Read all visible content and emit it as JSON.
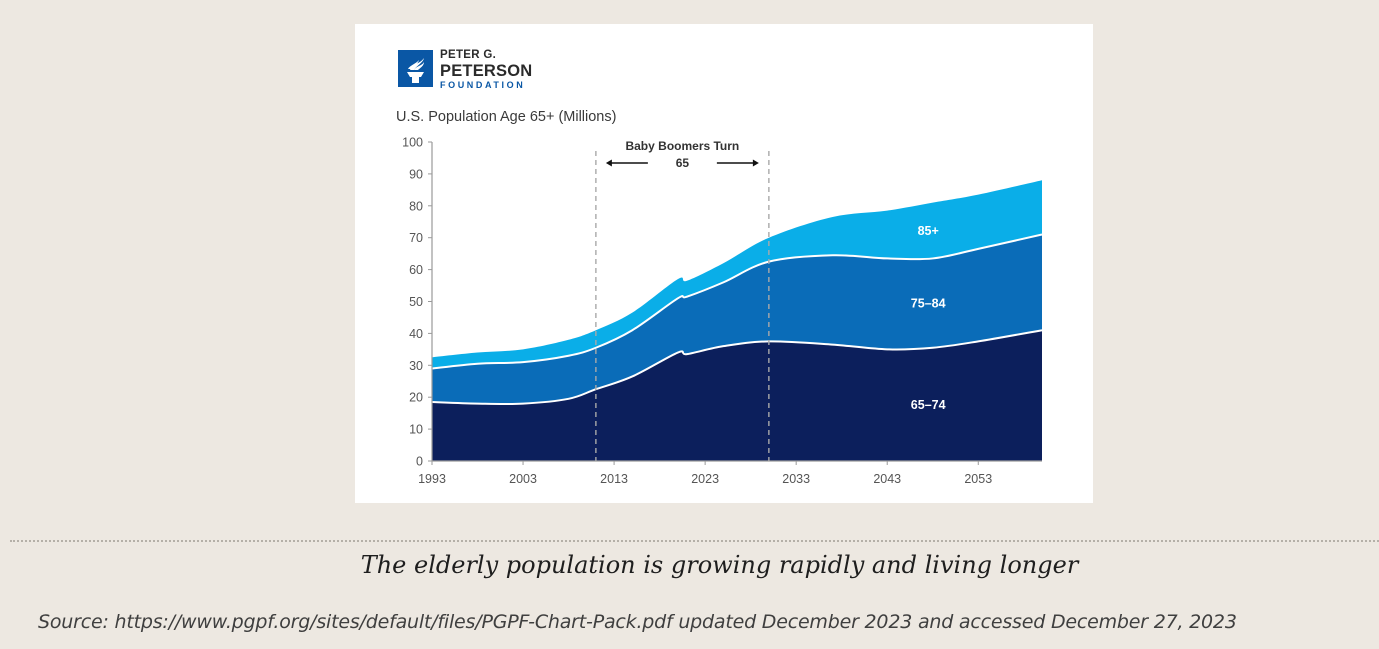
{
  "logo": {
    "line1": "PETER G.",
    "line2": "PETERSON",
    "line3": "FOUNDATION",
    "icon": "torch-icon",
    "color": "#0a57a5"
  },
  "caption": "The elderly population is growing rapidly and living longer",
  "source": "Source: https://www.pgpf.org/sites/default/files/PGPF-Chart-Pack.pdf updated December 2023 and accessed December 27, 2023",
  "chart_data": {
    "type": "area",
    "stacked": true,
    "title": "U.S. Population Age 65+ (Millions)",
    "xlabel": "",
    "ylabel": "",
    "xlim": [
      1993,
      2060
    ],
    "ylim": [
      0,
      100
    ],
    "grid": false,
    "x_ticks": [
      1993,
      2003,
      2013,
      2023,
      2033,
      2043,
      2053
    ],
    "y_ticks": [
      0,
      10,
      20,
      30,
      40,
      50,
      60,
      70,
      80,
      90,
      100
    ],
    "x": [
      1993,
      1998,
      2003,
      2008,
      2011,
      2015,
      2020,
      2021,
      2025,
      2030,
      2037,
      2043,
      2048,
      2053,
      2060
    ],
    "series": [
      {
        "name": "65–74",
        "color": "#0c1f5c",
        "values": [
          18.5,
          18,
          18,
          19.5,
          22.5,
          26.5,
          34,
          33.5,
          36,
          37.5,
          36.5,
          35,
          35.5,
          37.5,
          41
        ]
      },
      {
        "name": "75–84",
        "color": "#0a6cb8",
        "values": [
          10.5,
          12.5,
          13,
          13.5,
          13,
          14.5,
          17,
          18,
          20,
          25,
          28,
          28.5,
          28,
          29,
          30
        ]
      },
      {
        "name": "85+",
        "color": "#0aaee8",
        "values": [
          3.5,
          3.5,
          4,
          5,
          5.5,
          5.5,
          6,
          5,
          6,
          7.5,
          12,
          15,
          17.5,
          17,
          17
        ]
      }
    ],
    "annotation": {
      "text_line1": "Baby Boomers Turn",
      "text_line2": "65",
      "x_start": 2011,
      "x_end": 2030
    }
  }
}
